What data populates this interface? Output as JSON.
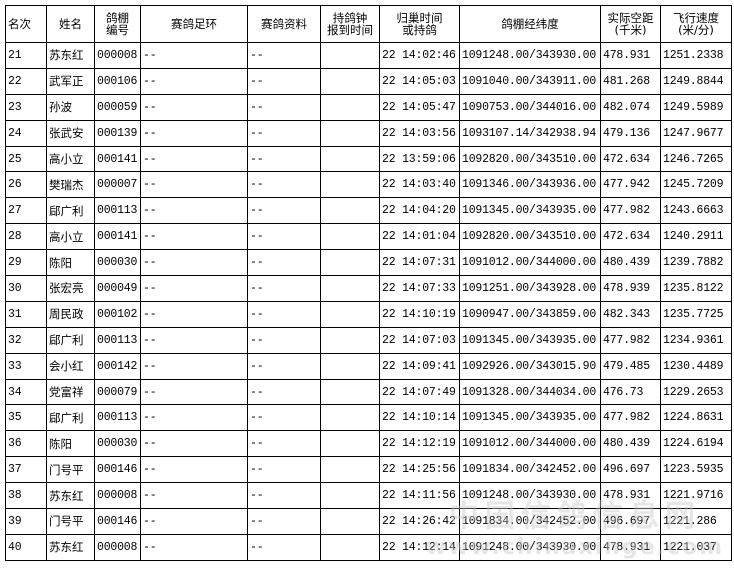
{
  "headers": [
    "名次",
    "姓名",
    "鸽棚编号",
    "赛鸽足环",
    "赛鸽资料",
    "持鸽钟报到时间",
    "归巢时间或持鸽",
    "鸽棚经纬度",
    "实际空距(千米)",
    "飞行速度(米/分)"
  ],
  "header_lines": {
    "loft_no": [
      "鸽棚",
      "编号"
    ],
    "clock_time": [
      "持鸽钟",
      "报到时间"
    ],
    "return_time": [
      "归巢时间",
      "或持鸽"
    ],
    "distance": [
      "实际空距",
      "(千米)"
    ],
    "speed": [
      "飞行速度",
      "(米/分)"
    ]
  },
  "rows": [
    {
      "rank": "21",
      "name": "苏东红",
      "loft": "000008",
      "ring": "--",
      "info": "--",
      "clock": "",
      "time": "22 14:02:46",
      "coord": "1091248.00/343930.00",
      "dist": "478.931",
      "speed": "1251.2338"
    },
    {
      "rank": "22",
      "name": "武军正",
      "loft": "000106",
      "ring": "--",
      "info": "--",
      "clock": "",
      "time": "22 14:05:03",
      "coord": "1091040.00/343911.00",
      "dist": "481.268",
      "speed": "1249.8844"
    },
    {
      "rank": "23",
      "name": "孙波",
      "loft": "000059",
      "ring": "--",
      "info": "--",
      "clock": "",
      "time": "22 14:05:47",
      "coord": "1090753.00/344016.00",
      "dist": "482.074",
      "speed": "1249.5989"
    },
    {
      "rank": "24",
      "name": "张武安",
      "loft": "000139",
      "ring": "--",
      "info": "--",
      "clock": "",
      "time": "22 14:03:56",
      "coord": "1093107.14/342938.94",
      "dist": "479.136",
      "speed": "1247.9677"
    },
    {
      "rank": "25",
      "name": "高小立",
      "loft": "000141",
      "ring": "--",
      "info": "--",
      "clock": "",
      "time": "22 13:59:06",
      "coord": "1092820.00/343510.00",
      "dist": "472.634",
      "speed": "1246.7265"
    },
    {
      "rank": "26",
      "name": "樊瑞杰",
      "loft": "000007",
      "ring": "--",
      "info": "--",
      "clock": "",
      "time": "22 14:03:40",
      "coord": "1091346.00/343936.00",
      "dist": "477.942",
      "speed": "1245.7209"
    },
    {
      "rank": "27",
      "name": "郈广利",
      "loft": "000113",
      "ring": "--",
      "info": "--",
      "clock": "",
      "time": "22 14:04:20",
      "coord": "1091345.00/343935.00",
      "dist": "477.982",
      "speed": "1243.6663"
    },
    {
      "rank": "28",
      "name": "高小立",
      "loft": "000141",
      "ring": "--",
      "info": "--",
      "clock": "",
      "time": "22 14:01:04",
      "coord": "1092820.00/343510.00",
      "dist": "472.634",
      "speed": "1240.2911"
    },
    {
      "rank": "29",
      "name": "陈阳",
      "loft": "000030",
      "ring": "--",
      "info": "--",
      "clock": "",
      "time": "22 14:07:31",
      "coord": "1091012.00/344000.00",
      "dist": "480.439",
      "speed": "1239.7882"
    },
    {
      "rank": "30",
      "name": "张宏亮",
      "loft": "000049",
      "ring": "--",
      "info": "--",
      "clock": "",
      "time": "22 14:07:33",
      "coord": "1091251.00/343928.00",
      "dist": "478.939",
      "speed": "1235.8122"
    },
    {
      "rank": "31",
      "name": "周民政",
      "loft": "000102",
      "ring": "--",
      "info": "--",
      "clock": "",
      "time": "22 14:10:19",
      "coord": "1090947.00/343859.00",
      "dist": "482.343",
      "speed": "1235.7725"
    },
    {
      "rank": "32",
      "name": "郈广利",
      "loft": "000113",
      "ring": "--",
      "info": "--",
      "clock": "",
      "time": "22 14:07:03",
      "coord": "1091345.00/343935.00",
      "dist": "477.982",
      "speed": "1234.9361"
    },
    {
      "rank": "33",
      "name": "会小红",
      "loft": "000142",
      "ring": "--",
      "info": "--",
      "clock": "",
      "time": "22 14:09:41",
      "coord": "1092926.00/343015.90",
      "dist": "479.485",
      "speed": "1230.4489"
    },
    {
      "rank": "34",
      "name": "党富祥",
      "loft": "000079",
      "ring": "--",
      "info": "--",
      "clock": "",
      "time": "22 14:07:49",
      "coord": "1091328.00/344034.00",
      "dist": "476.73",
      "speed": "1229.2653"
    },
    {
      "rank": "35",
      "name": "郈广利",
      "loft": "000113",
      "ring": "--",
      "info": "--",
      "clock": "",
      "time": "22 14:10:14",
      "coord": "1091345.00/343935.00",
      "dist": "477.982",
      "speed": "1224.8631"
    },
    {
      "rank": "36",
      "name": "陈阳",
      "loft": "000030",
      "ring": "--",
      "info": "--",
      "clock": "",
      "time": "22 14:12:19",
      "coord": "1091012.00/344000.00",
      "dist": "480.439",
      "speed": "1224.6194"
    },
    {
      "rank": "37",
      "name": "门号平",
      "loft": "000146",
      "ring": "--",
      "info": "--",
      "clock": "",
      "time": "22 14:25:56",
      "coord": "1091834.00/342452.00",
      "dist": "496.697",
      "speed": "1223.5935"
    },
    {
      "rank": "38",
      "name": "苏东红",
      "loft": "000008",
      "ring": "--",
      "info": "--",
      "clock": "",
      "time": "22 14:11:56",
      "coord": "1091248.00/343930.00",
      "dist": "478.931",
      "speed": "1221.9716"
    },
    {
      "rank": "39",
      "name": "门号平",
      "loft": "000146",
      "ring": "--",
      "info": "--",
      "clock": "",
      "time": "22 14:26:42",
      "coord": "1091834.00/342452.00",
      "dist": "496.697",
      "speed": "1221.286"
    },
    {
      "rank": "40",
      "name": "苏东红",
      "loft": "000008",
      "ring": "--",
      "info": "--",
      "clock": "",
      "time": "22 14:12:14",
      "coord": "1091248.00/343930.00",
      "dist": "478.931",
      "speed": "1221.037"
    }
  ],
  "watermark": {
    "line1": "中国信鸽信息网",
    "line2": "www.chinaxinge.com"
  }
}
